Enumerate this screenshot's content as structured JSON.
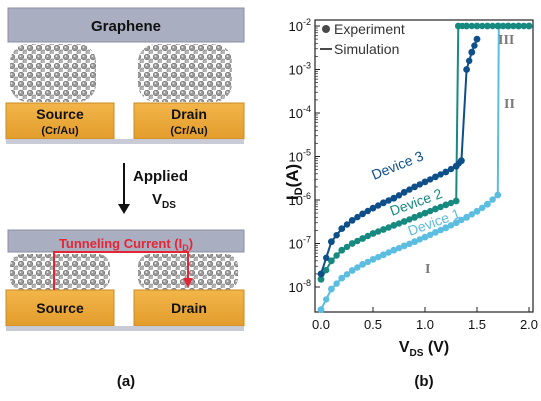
{
  "panel_a": {
    "top_device": {
      "layer": "Graphene",
      "left_electrode": "Source",
      "left_material": "(Cr/Au)",
      "right_electrode": "Drain",
      "right_material": "(Cr/Au)"
    },
    "arrow_label_1": "Applied",
    "arrow_label_2": "V",
    "arrow_label_sub": "DS",
    "bottom_device": {
      "current_label": "Tunneling Current (I",
      "current_sub": "D",
      "current_close": ")",
      "left_electrode": "Source",
      "right_electrode": "Drain"
    },
    "caption": "(a)"
  },
  "panel_b": {
    "caption": "(b)",
    "legend": {
      "experiment": "Experiment",
      "simulation": "Simulation"
    },
    "regions": [
      "I",
      "II",
      "III"
    ],
    "device_labels": [
      "Device 1",
      "Device 2",
      "Device 3"
    ],
    "colors": {
      "device1": "#5bbde0",
      "device2": "#178a80",
      "device3": "#0e4f8a",
      "legend_dot": "#4a4a4a"
    }
  },
  "chart_data": {
    "type": "scatter",
    "xlabel": "V_DS (V)",
    "ylabel": "I_D(A)",
    "xlim": [
      0,
      2.0
    ],
    "ylim": [
      1e-09,
      0.01
    ],
    "yscale": "log",
    "x_ticks": [
      "0.0",
      "0.5",
      "1.0",
      "1.5",
      "2.0"
    ],
    "y_ticks": [
      "10-2",
      "10-3",
      "10-4",
      "10-5",
      "10-6",
      "10-7",
      "10-8"
    ],
    "series": [
      {
        "name": "Device 1",
        "x": [
          0.0,
          0.1,
          0.2,
          0.3,
          0.4,
          0.5,
          0.6,
          0.7,
          0.8,
          0.9,
          1.0,
          1.1,
          1.2,
          1.3,
          1.4,
          1.5,
          1.6,
          1.7,
          1.71,
          1.8,
          1.9,
          2.0
        ],
        "y": [
          3e-09,
          9e-09,
          1.6e-08,
          2.4e-08,
          3.3e-08,
          4.3e-08,
          5.5e-08,
          7e-08,
          8.8e-08,
          1.1e-07,
          1.4e-07,
          1.8e-07,
          2.3e-07,
          3e-07,
          4e-07,
          5.5e-07,
          8e-07,
          1.3e-06,
          0.01,
          0.01,
          0.01,
          0.01
        ]
      },
      {
        "name": "Device 2",
        "x": [
          0.0,
          0.1,
          0.2,
          0.3,
          0.4,
          0.5,
          0.6,
          0.7,
          0.8,
          0.9,
          1.0,
          1.1,
          1.2,
          1.3,
          1.32,
          1.4,
          1.5,
          1.6,
          1.7,
          1.8,
          1.9,
          2.0
        ],
        "y": [
          1.5e-08,
          4e-08,
          7e-08,
          1e-07,
          1.3e-07,
          1.7e-07,
          2.1e-07,
          2.6e-07,
          3.2e-07,
          4e-07,
          5e-07,
          6.2e-07,
          7.7e-07,
          9.5e-07,
          0.01,
          0.01,
          0.01,
          0.01,
          0.01,
          0.01,
          0.01,
          0.01
        ]
      },
      {
        "name": "Device 3",
        "x": [
          0.0,
          0.1,
          0.2,
          0.3,
          0.4,
          0.5,
          0.6,
          0.7,
          0.8,
          0.9,
          1.0,
          1.1,
          1.2,
          1.3,
          1.35,
          1.4,
          1.45,
          1.5
        ],
        "y": [
          2e-08,
          1.1e-07,
          2.2e-07,
          3.4e-07,
          4.8e-07,
          6.5e-07,
          8.6e-07,
          1.1e-06,
          1.5e-06,
          2e-06,
          2.6e-06,
          3.4e-06,
          4.4e-06,
          6e-06,
          8e-06,
          0.001,
          0.0025,
          0.005
        ]
      }
    ]
  }
}
